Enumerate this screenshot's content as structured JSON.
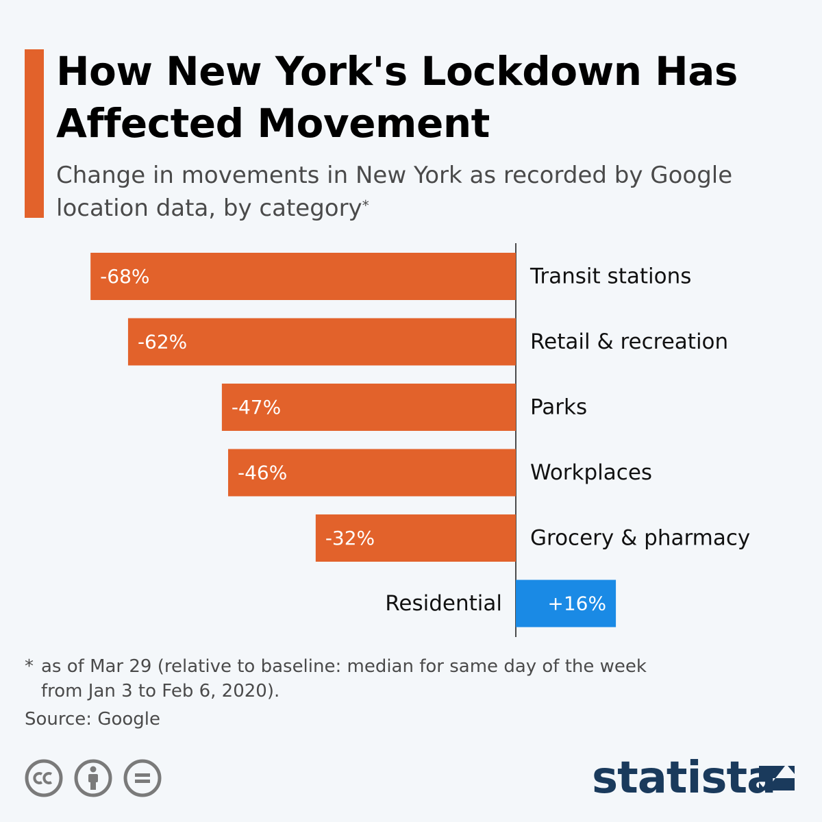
{
  "title": "How New York's Lockdown Has Affected Movement",
  "subtitle": "Change in movements in New York as recorded by Google location data, by category",
  "subtitle_mark": "*",
  "footnote": {
    "mark": "*",
    "line1": "as of Mar 29 (relative to baseline: median for same day of the week",
    "line2": "from Jan 3 to Feb 6, 2020)."
  },
  "source": "Source: Google",
  "brand": "statista",
  "license_icons": [
    "cc-icon",
    "attribution-icon",
    "no-derivatives-icon"
  ],
  "colors": {
    "accent": "#e2622b",
    "negative": "#e2622b",
    "positive": "#1a8ae5",
    "brand": "#1a3a5c"
  },
  "chart_data": {
    "type": "bar",
    "orientation": "horizontal",
    "title": "How New York's Lockdown Has Affected Movement",
    "xlabel": "",
    "ylabel": "",
    "unit": "%",
    "xlim": [
      -68,
      16
    ],
    "grid": false,
    "categories": [
      "Transit stations",
      "Retail & recreation",
      "Parks",
      "Workplaces",
      "Grocery & pharmacy",
      "Residential"
    ],
    "values": [
      -68,
      -62,
      -47,
      -46,
      -32,
      16
    ],
    "labels": [
      "-68%",
      "-62%",
      "-47%",
      "-46%",
      "-32%",
      "+16%"
    ]
  }
}
